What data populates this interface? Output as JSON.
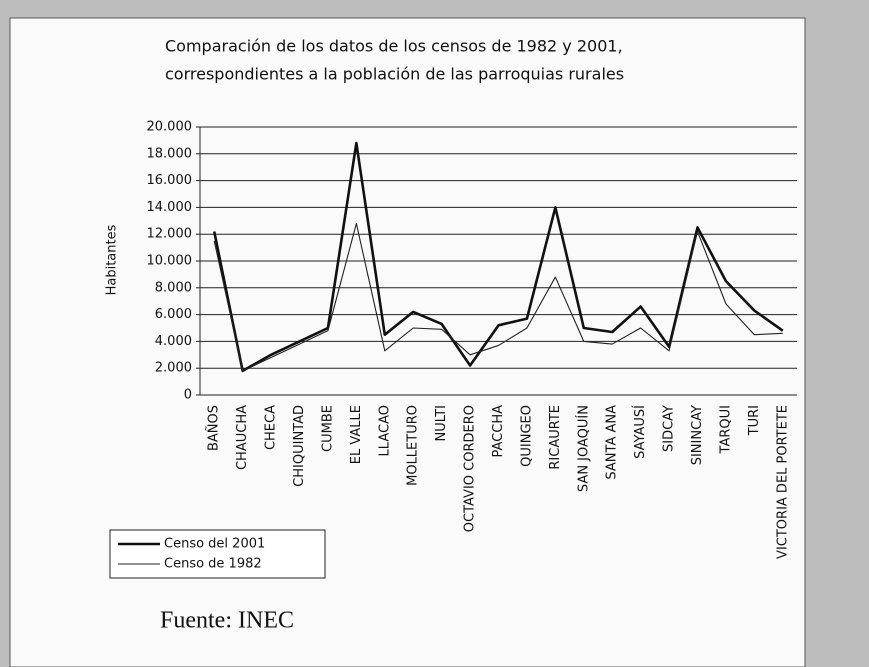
{
  "chart_data": {
    "type": "line",
    "title": [
      "Comparación de los datos de los censos de 1982 y 2001,",
      "correspondientes a la población de las parroquias rurales"
    ],
    "y_label": "Habitantes",
    "source": "Fuente: INEC",
    "categories": [
      "BAÑOS",
      "CHAUCHA",
      "CHECA",
      "CHIQUINTAD",
      "CUMBE",
      "EL VALLE",
      "LLACAO",
      "MOLLETURO",
      "NULTI",
      "OCTAVIO CORDERO",
      "PACCHA",
      "QUINGEO",
      "RICAURTE",
      "SAN JOAQUÍN",
      "SANTA ANA",
      "SAYAUSÍ",
      "SIDCAY",
      "SININCAY",
      "TARQUI",
      "TURI",
      "VICTORIA DEL PORTETE"
    ],
    "series": [
      {
        "name": "Censo del 2001",
        "color": "#111111",
        "width": 2.6,
        "values": [
          12200,
          1800,
          3000,
          4000,
          5000,
          18800,
          4500,
          6200,
          5300,
          2200,
          5200,
          5700,
          14000,
          5000,
          4700,
          6600,
          3600,
          12500,
          8500,
          6300,
          4800
        ]
      },
      {
        "name": "Censo de 1982",
        "color": "#222222",
        "width": 1.1,
        "values": [
          11500,
          1800,
          2800,
          3800,
          4800,
          12800,
          3300,
          5000,
          4900,
          3000,
          3700,
          5000,
          8800,
          4000,
          3800,
          5000,
          3300,
          12200,
          6800,
          4500,
          4600
        ]
      }
    ],
    "ylim": [
      0,
      20000
    ],
    "yticks": [
      0,
      {
        "value": 2000,
        "label": "2.000"
      },
      {
        "value": 4000,
        "label": "4.000"
      },
      {
        "value": 6000,
        "label": "6.000"
      },
      {
        "value": 8000,
        "label": "8.000"
      },
      {
        "value": 10000,
        "label": "10.000"
      },
      {
        "value": 12000,
        "label": "12.000"
      },
      {
        "value": 14000,
        "label": "14.000"
      },
      {
        "value": 16000,
        "label": "16.000"
      },
      {
        "value": 18000,
        "label": "18.000"
      },
      {
        "value": 20000,
        "label": "20.000"
      }
    ],
    "grid": true,
    "legend": "bottom-left"
  }
}
